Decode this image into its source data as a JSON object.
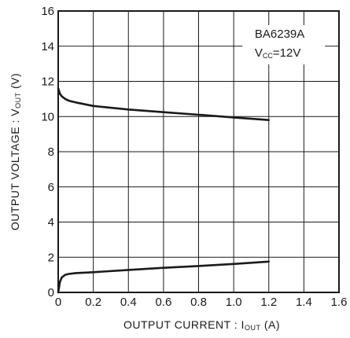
{
  "chart_data": {
    "type": "line",
    "title": "",
    "annotation": {
      "line1": "BA6239A",
      "line2_main": "V",
      "line2_sub": "CC",
      "line2_rest": "=12V"
    },
    "xlabel": {
      "main": "OUTPUT  CURRENT : I",
      "sub": "OUT",
      "unit": "  (A)"
    },
    "ylabel": {
      "main": "OUTPUT  VOLTAGE : V",
      "sub": "OUT",
      "unit": "  (V)"
    },
    "xlim": [
      0,
      1.6
    ],
    "ylim": [
      0,
      16
    ],
    "xticks": [
      "0",
      "0.2",
      "0.4",
      "0.6",
      "0.8",
      "1.0",
      "1.2",
      "1.4",
      "1.6"
    ],
    "yticks": [
      "0",
      "2",
      "4",
      "6",
      "8",
      "10",
      "12",
      "14",
      "16"
    ],
    "grid": true,
    "series": [
      {
        "x": [
          0,
          0.01,
          0.02,
          0.04,
          0.06,
          0.1,
          0.2,
          0.4,
          0.6,
          0.8,
          1.0,
          1.2
        ],
        "y": [
          11.6,
          11.3,
          11.15,
          11.0,
          10.9,
          10.8,
          10.6,
          10.4,
          10.25,
          10.1,
          9.95,
          9.8
        ]
      },
      {
        "x": [
          0,
          0.01,
          0.02,
          0.04,
          0.06,
          0.1,
          0.2,
          0.4,
          0.6,
          0.8,
          1.0,
          1.2
        ],
        "y": [
          0.0,
          0.6,
          0.85,
          1.0,
          1.05,
          1.1,
          1.15,
          1.28,
          1.4,
          1.5,
          1.62,
          1.75
        ]
      }
    ]
  }
}
